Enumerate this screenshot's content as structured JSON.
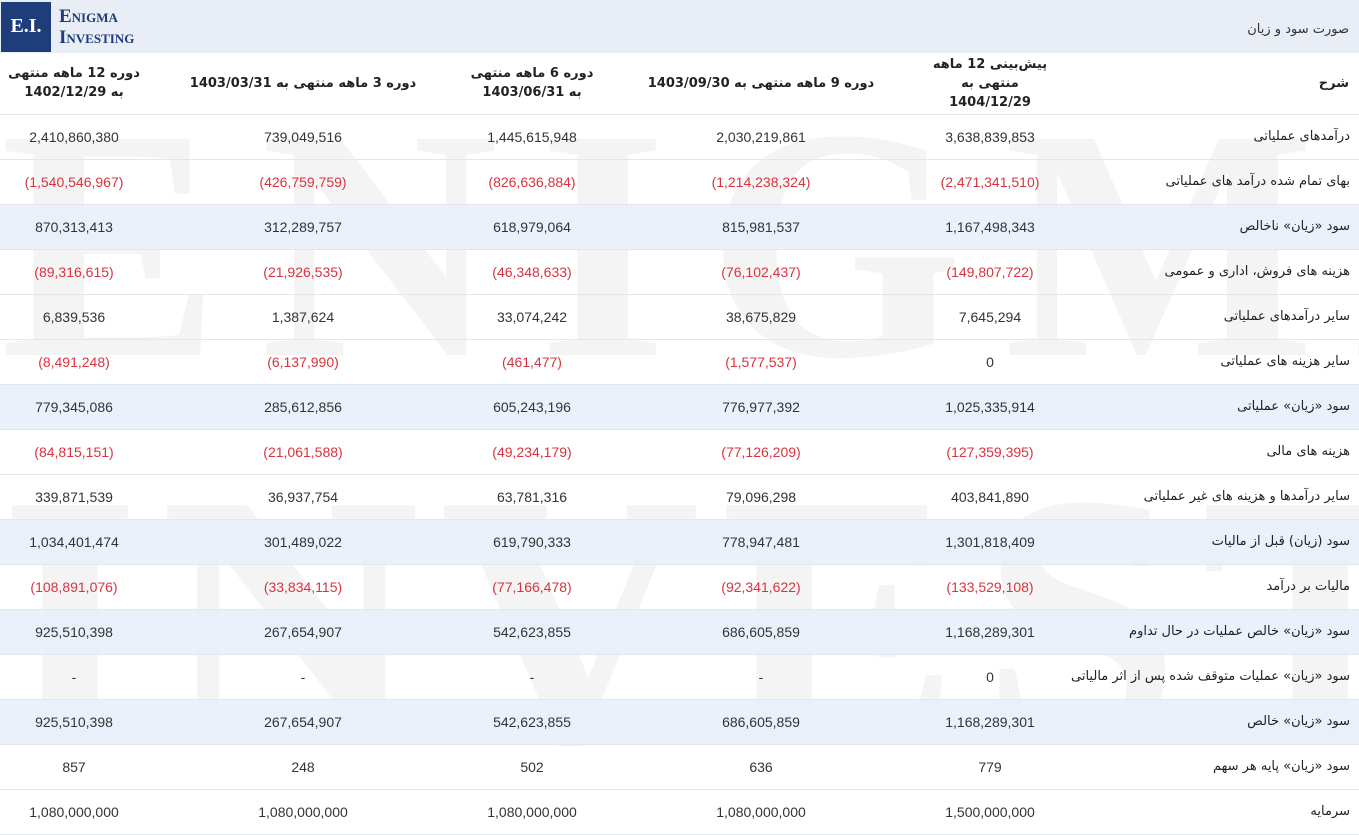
{
  "logo": {
    "mark": "E.I.",
    "line1": "Enigma",
    "line2": "Investing"
  },
  "watermark": {
    "line1": "ENIGMA",
    "line2": "INVESTING"
  },
  "statement_title": "صورت سود و زیان",
  "columns": {
    "desc": "شرح",
    "c1": "پیش‌بینی 12 ماهه منتهی به 1404/12/29",
    "c2": "دوره 9 ماهه منتهی به 1403/09/30",
    "c3": "دوره 6 ماهه منتهی به 1403/06/31",
    "c4": "دوره 3 ماهه منتهی به 1403/03/31",
    "c5": "دوره 12 ماهه منتهی به 1402/12/29"
  },
  "colors": {
    "negative": "#d9333f",
    "highlight_row": "#e8effa",
    "brand": "#1f3d7a"
  },
  "rows": [
    {
      "label": "درآمدهای عملیاتی",
      "v1": "3,638,839,853",
      "v2": "2,030,219,861",
      "v3": "1,445,615,948",
      "v4": "739,049,516",
      "v5": "2,410,860,380"
    },
    {
      "label": "بهای تمام شده درآمد های عملیاتی",
      "v1": "(2,471,341,510)",
      "v2": "(1,214,238,324)",
      "v3": "(826,636,884)",
      "v4": "(426,759,759)",
      "v5": "(1,540,546,967)"
    },
    {
      "label": "سود «زیان» ناخالص",
      "v1": "1,167,498,343",
      "v2": "815,981,537",
      "v3": "618,979,064",
      "v4": "312,289,757",
      "v5": "870,313,413"
    },
    {
      "label": "هزینه های فروش، اداری و عمومی",
      "v1": "(149,807,722)",
      "v2": "(76,102,437)",
      "v3": "(46,348,633)",
      "v4": "(21,926,535)",
      "v5": "(89,316,615)"
    },
    {
      "label": "سایر درآمدهای عملیاتی",
      "v1": "7,645,294",
      "v2": "38,675,829",
      "v3": "33,074,242",
      "v4": "1,387,624",
      "v5": "6,839,536"
    },
    {
      "label": "سایر هزینه های عملیاتی",
      "v1": "0",
      "v2": "(1,577,537)",
      "v3": "(461,477)",
      "v4": "(6,137,990)",
      "v5": "(8,491,248)"
    },
    {
      "label": "سود «زیان» عملیاتی",
      "v1": "1,025,335,914",
      "v2": "776,977,392",
      "v3": "605,243,196",
      "v4": "285,612,856",
      "v5": "779,345,086"
    },
    {
      "label": "هزینه های مالی",
      "v1": "(127,359,395)",
      "v2": "(77,126,209)",
      "v3": "(49,234,179)",
      "v4": "(21,061,588)",
      "v5": "(84,815,151)"
    },
    {
      "label": "سایر درآمدها و هزینه های غیر عملیاتی",
      "v1": "403,841,890",
      "v2": "79,096,298",
      "v3": "63,781,316",
      "v4": "36,937,754",
      "v5": "339,871,539"
    },
    {
      "label": "سود (زیان) قبل از مالیات",
      "v1": "1,301,818,409",
      "v2": "778,947,481",
      "v3": "619,790,333",
      "v4": "301,489,022",
      "v5": "1,034,401,474"
    },
    {
      "label": "مالیات بر درآمد",
      "v1": "(133,529,108)",
      "v2": "(92,341,622)",
      "v3": "(77,166,478)",
      "v4": "(33,834,115)",
      "v5": "(108,891,076)"
    },
    {
      "label": "سود «زیان» خالص عملیات در حال تداوم",
      "v1": "1,168,289,301",
      "v2": "686,605,859",
      "v3": "542,623,855",
      "v4": "267,654,907",
      "v5": "925,510,398"
    },
    {
      "label": "سود «زیان» عملیات متوقف شده پس از اثر مالیاتی",
      "v1": "0",
      "v2": "-",
      "v3": "-",
      "v4": "-",
      "v5": "-"
    },
    {
      "label": "سود «زیان» خالص",
      "v1": "1,168,289,301",
      "v2": "686,605,859",
      "v3": "542,623,855",
      "v4": "267,654,907",
      "v5": "925,510,398"
    },
    {
      "label": "سود «زیان» پایه هر سهم",
      "v1": "779",
      "v2": "636",
      "v3": "502",
      "v4": "248",
      "v5": "857"
    },
    {
      "label": "سرمایه",
      "v1": "1,500,000,000",
      "v2": "1,080,000,000",
      "v3": "1,080,000,000",
      "v4": "1,080,000,000",
      "v5": "1,080,000,000"
    }
  ]
}
